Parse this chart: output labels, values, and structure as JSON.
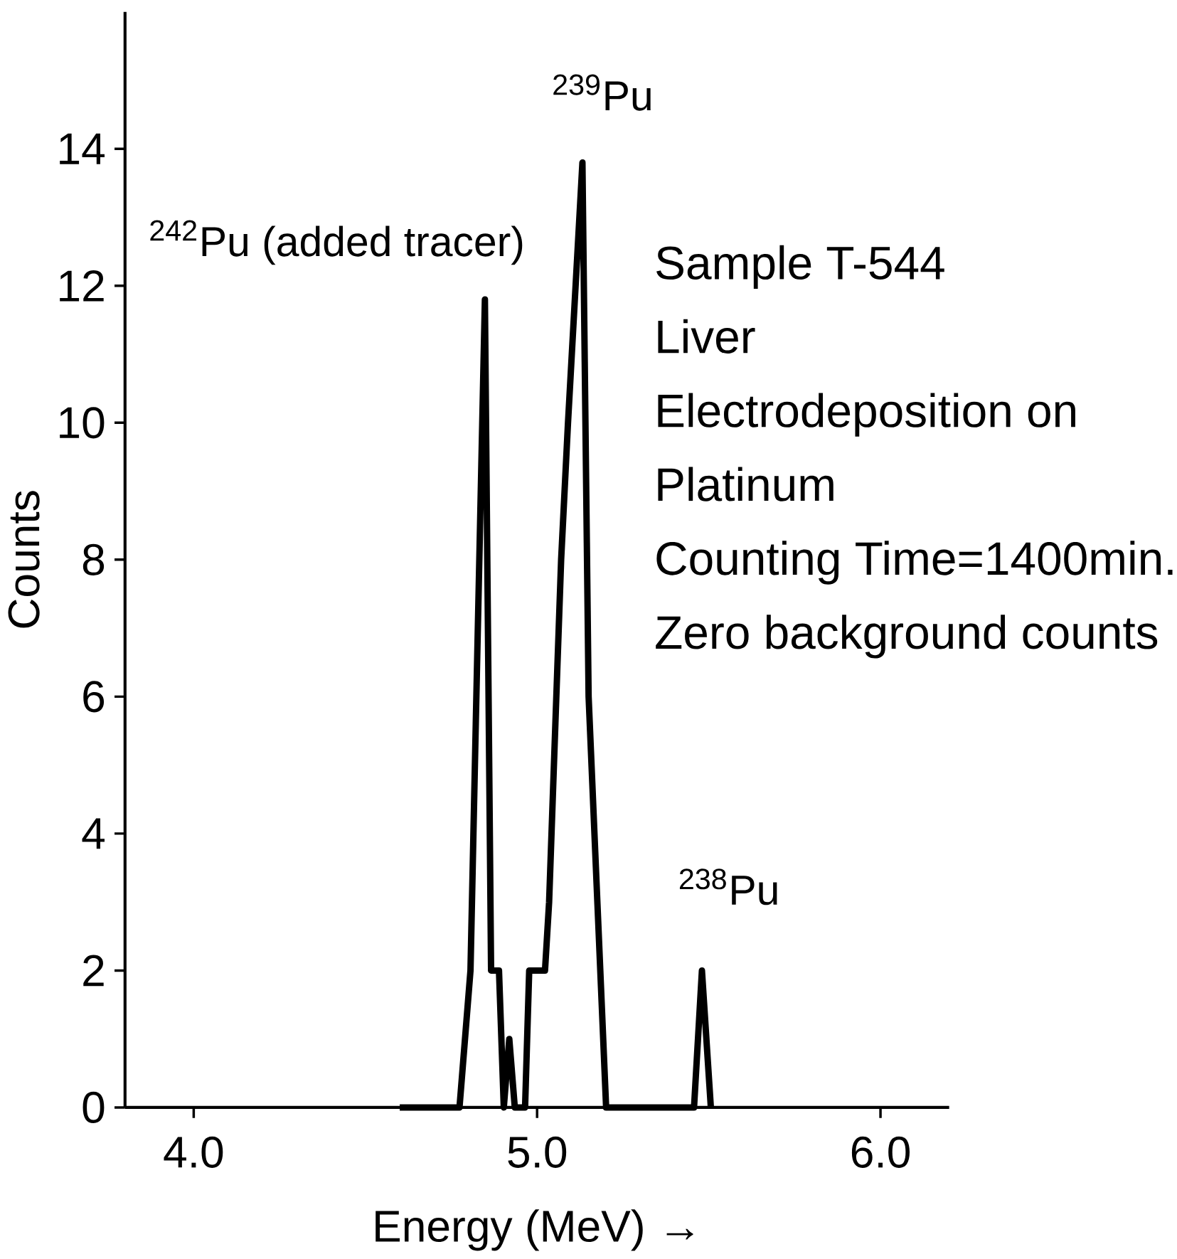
{
  "chart_data": {
    "type": "line",
    "xlabel": "Energy (MeV) →",
    "ylabel": "Counts",
    "xlim": [
      3.8,
      6.2
    ],
    "ylim": [
      0,
      16
    ],
    "xticks": [
      {
        "value": 4,
        "label": "4.0"
      },
      {
        "value": 5,
        "label": "5.0"
      },
      {
        "value": 6,
        "label": "6.0"
      }
    ],
    "yticks": [
      0,
      2,
      4,
      6,
      8,
      10,
      12,
      14
    ],
    "series": [
      {
        "color": "#000000",
        "x": [
          4.6,
          4.774,
          4.806,
          4.848,
          4.866,
          4.889,
          4.903,
          4.919,
          4.935,
          4.965,
          4.977,
          5.023,
          5.035,
          5.07,
          5.09,
          5.132,
          5.15,
          5.201,
          5.457,
          5.48,
          5.506
        ],
        "values": [
          0,
          0,
          2,
          11.8,
          2,
          2,
          0,
          1,
          0,
          0,
          2,
          2,
          3,
          8,
          10,
          13.8,
          6,
          0,
          0,
          2,
          0
        ]
      }
    ],
    "annotations": [
      {
        "text": "$^{242}$Pu (added tracer)",
        "x": 4.848,
        "y": 11.8
      },
      {
        "text": "$^{239}$Pu",
        "x": 5.132,
        "y": 13.8
      },
      {
        "text": "$^{238}$Pu",
        "x": 5.48,
        "y": 2
      },
      "Sample  T-544",
      "Liver",
      "Electrodeposition  on",
      "Platinum",
      "Counting Time=1400min.",
      "Zero background counts"
    ]
  }
}
